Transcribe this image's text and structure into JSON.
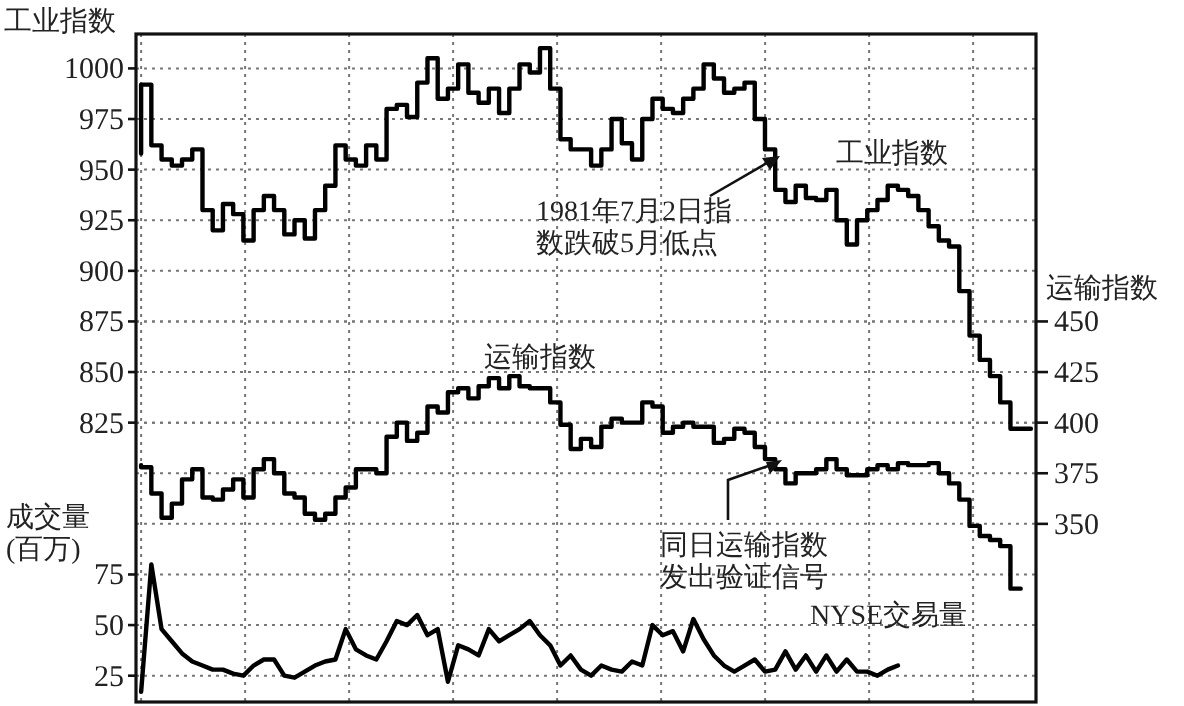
{
  "chart_data": {
    "type": "step",
    "categories": [
      null,
      null,
      null,
      null,
      null,
      null,
      null,
      null,
      null,
      null,
      null,
      null,
      null,
      null,
      null,
      null,
      null,
      null,
      null,
      null,
      null,
      null,
      null,
      null,
      null,
      null,
      null,
      null,
      null,
      null,
      null,
      null,
      null,
      null,
      null,
      null,
      null,
      null,
      null,
      null,
      null,
      null,
      null,
      null,
      null,
      null,
      null,
      null,
      null,
      null,
      null,
      null,
      null,
      null,
      null,
      null,
      null,
      null,
      null,
      null,
      null,
      null,
      null,
      null,
      null,
      null,
      null,
      null,
      null,
      null,
      null,
      null,
      null,
      null,
      null,
      null,
      null,
      null,
      null,
      null,
      null,
      null,
      null,
      null,
      null,
      null,
      null,
      null
    ],
    "ylabel": "工业指数",
    "y2label": "运输指数",
    "y3label": "成交量(百万)",
    "ylim": [
      687,
      1017
    ],
    "yticks": [
      825,
      850,
      875,
      900,
      925,
      950,
      975,
      1000
    ],
    "y2lim": [
      262,
      592
    ],
    "y2ticks": [
      350,
      375,
      400,
      425,
      450
    ],
    "y3lim": [
      12,
      342
    ],
    "y3ticks": [
      25,
      50,
      75
    ],
    "grid": true,
    "line_style": "solid",
    "marker": "none",
    "annotations": [
      "1981年7月2日指数跌破5月低点",
      "同日运输指数发出验证信号"
    ],
    "series": [
      {
        "name": "工业指数",
        "color": "#000000",
        "axis": "y",
        "values": [
          958,
          992,
          962,
          955,
          952,
          955,
          960,
          930,
          920,
          933,
          928,
          915,
          930,
          937,
          930,
          918,
          925,
          916,
          930,
          942,
          962,
          955,
          952,
          962,
          955,
          980,
          982,
          976,
          993,
          1005,
          985,
          990,
          1002,
          988,
          983,
          990,
          978,
          990,
          1002,
          998,
          1010,
          990,
          965,
          960,
          960,
          952,
          960,
          975,
          963,
          955,
          975,
          985,
          980,
          978,
          985,
          990,
          1002,
          995,
          988,
          990,
          993,
          975,
          960,
          940,
          934,
          942,
          936,
          935,
          940,
          925,
          913,
          925,
          930,
          935,
          942,
          940,
          937,
          930,
          922,
          915,
          912,
          890,
          868,
          856,
          848,
          835,
          822,
          822
        ]
      },
      {
        "name": "运输指数",
        "color": "#000000",
        "axis": "y2",
        "values": [
          379,
          378,
          365,
          353,
          360,
          372,
          377,
          363,
          362,
          367,
          372,
          363,
          377,
          382,
          375,
          365,
          363,
          355,
          352,
          355,
          363,
          368,
          377,
          377,
          375,
          393,
          400,
          391,
          395,
          408,
          405,
          415,
          417,
          412,
          418,
          422,
          417,
          423,
          418,
          417,
          417,
          410,
          399,
          387,
          392,
          388,
          398,
          402,
          400,
          400,
          410,
          408,
          395,
          398,
          400,
          398,
          398,
          390,
          392,
          397,
          395,
          388,
          382,
          377,
          370,
          375,
          375,
          377,
          382,
          377,
          374,
          374,
          377,
          379,
          377,
          380,
          379,
          379,
          380,
          375,
          370,
          362,
          349,
          344,
          342,
          339,
          318,
          null
        ]
      },
      {
        "name": "NYSE交易量",
        "color": "#000000",
        "axis": "y3",
        "type": "line",
        "values": [
          17,
          80,
          48,
          42,
          36,
          32,
          30,
          28,
          28,
          26,
          25,
          30,
          33,
          33,
          25,
          24,
          27,
          30,
          32,
          33,
          48,
          38,
          35,
          33,
          42,
          52,
          50,
          55,
          45,
          48,
          22,
          40,
          38,
          35,
          48,
          42,
          45,
          48,
          52,
          45,
          40,
          30,
          35,
          28,
          25,
          30,
          28,
          27,
          32,
          30,
          50,
          45,
          47,
          37,
          53,
          43,
          35,
          30,
          27,
          30,
          33,
          27,
          28,
          37,
          28,
          35,
          27,
          35,
          27,
          33,
          27,
          27,
          25,
          28,
          30,
          null,
          null,
          null,
          null,
          null,
          null,
          null,
          null,
          null,
          null,
          null,
          null,
          null
        ]
      }
    ]
  }
}
